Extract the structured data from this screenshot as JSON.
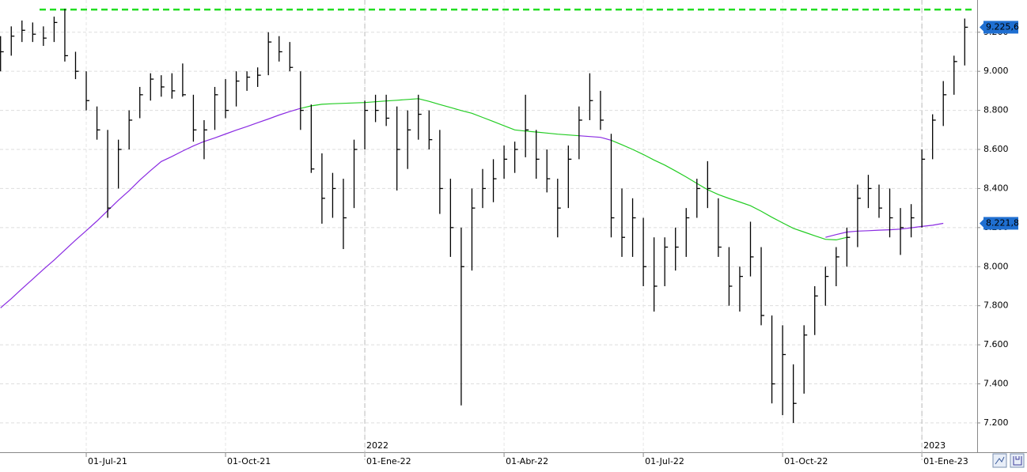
{
  "chart_data": {
    "type": "hlc",
    "categories": [
      null,
      null,
      null,
      null,
      null,
      null,
      null,
      null,
      "01-Jul-21",
      null,
      null,
      null,
      null,
      null,
      null,
      null,
      null,
      null,
      null,
      null,
      null,
      "01-Oct-21",
      null,
      null,
      null,
      null,
      null,
      null,
      null,
      null,
      null,
      null,
      null,
      null,
      "01-Ene-22",
      null,
      null,
      null,
      null,
      null,
      null,
      null,
      null,
      null,
      null,
      null,
      null,
      "01-Abr-22",
      null,
      null,
      null,
      null,
      null,
      null,
      null,
      null,
      null,
      null,
      null,
      null,
      "01-Jul-22",
      null,
      null,
      null,
      null,
      null,
      null,
      null,
      null,
      null,
      null,
      null,
      null,
      "01-Oct-22",
      null,
      null,
      null,
      null,
      null,
      null,
      null,
      null,
      null,
      null,
      null,
      null,
      "01-Ene-23",
      null,
      null,
      null,
      null
    ],
    "year_categories": [
      null,
      null,
      null,
      null,
      null,
      null,
      null,
      null,
      null,
      null,
      null,
      null,
      null,
      null,
      null,
      null,
      null,
      null,
      null,
      null,
      null,
      null,
      null,
      null,
      null,
      null,
      null,
      null,
      null,
      null,
      null,
      null,
      null,
      null,
      "2022",
      null,
      null,
      null,
      null,
      null,
      null,
      null,
      null,
      null,
      null,
      null,
      null,
      null,
      null,
      null,
      null,
      null,
      null,
      null,
      null,
      null,
      null,
      null,
      null,
      null,
      null,
      null,
      null,
      null,
      null,
      null,
      null,
      null,
      null,
      null,
      null,
      null,
      null,
      null,
      null,
      null,
      null,
      null,
      null,
      null,
      null,
      null,
      null,
      null,
      null,
      null,
      "2023",
      null,
      null,
      null,
      null
    ],
    "price": {
      "color": "#000000",
      "high": [
        9180,
        9230,
        9260,
        9250,
        9230,
        9280,
        9320,
        9100,
        9000,
        8820,
        8700,
        8650,
        8800,
        8920,
        8990,
        8980,
        8990,
        9040,
        8880,
        8750,
        8920,
        8960,
        9000,
        9000,
        9020,
        9200,
        9180,
        9150,
        9000,
        8830,
        8580,
        8480,
        8450,
        8650,
        8850,
        8880,
        8880,
        8820,
        8800,
        8880,
        8800,
        8700,
        8450,
        8200,
        8400,
        8500,
        8550,
        8620,
        8640,
        8880,
        8700,
        8600,
        8450,
        8620,
        8820,
        8990,
        8900,
        8680,
        8400,
        8350,
        8250,
        8150,
        8150,
        8200,
        8300,
        8450,
        8540,
        8350,
        8100,
        8000,
        8230,
        8100,
        7750,
        7700,
        7500,
        7700,
        7900,
        8000,
        8100,
        8200,
        8420,
        8470,
        8420,
        8400,
        8300,
        8320,
        8600,
        8780,
        8950,
        9080,
        9270
      ],
      "low": [
        9000,
        9080,
        9150,
        9150,
        9130,
        9150,
        9050,
        8960,
        8800,
        8650,
        8250,
        8400,
        8600,
        8760,
        8850,
        8870,
        8860,
        8870,
        8640,
        8550,
        8700,
        8760,
        8820,
        8900,
        8920,
        8980,
        9050,
        9000,
        8700,
        8480,
        8220,
        8250,
        8090,
        8300,
        8600,
        8740,
        8720,
        8390,
        8500,
        8650,
        8600,
        8270,
        8050,
        7290,
        7980,
        8300,
        8330,
        8450,
        8480,
        8560,
        8450,
        8380,
        8150,
        8300,
        8550,
        8750,
        8700,
        8150,
        8050,
        8050,
        7900,
        7770,
        7900,
        7980,
        8050,
        8250,
        8300,
        8050,
        7800,
        7770,
        7950,
        7700,
        7300,
        7240,
        7200,
        7350,
        7650,
        7800,
        7900,
        8000,
        8100,
        8300,
        8250,
        8150,
        8060,
        8150,
        8200,
        8550,
        8720,
        8880,
        9030
      ],
      "close": [
        9100,
        9180,
        9210,
        9190,
        9170,
        9250,
        9080,
        9000,
        8850,
        8700,
        8300,
        8600,
        8750,
        8880,
        8960,
        8920,
        8900,
        8880,
        8700,
        8700,
        8880,
        8800,
        8950,
        8970,
        8980,
        9150,
        9100,
        9020,
        8800,
        8500,
        8350,
        8400,
        8250,
        8600,
        8800,
        8800,
        8760,
        8600,
        8700,
        8780,
        8650,
        8400,
        8200,
        8000,
        8300,
        8400,
        8450,
        8550,
        8600,
        8700,
        8550,
        8450,
        8300,
        8550,
        8750,
        8850,
        8750,
        8250,
        8150,
        8250,
        8000,
        7900,
        8100,
        8100,
        8250,
        8400,
        8400,
        8100,
        7900,
        7950,
        8050,
        7750,
        7400,
        7550,
        7300,
        7650,
        7850,
        7950,
        8050,
        8150,
        8350,
        8400,
        8300,
        8250,
        8200,
        8250,
        8550,
        8750,
        8880,
        9050,
        9225.6
      ],
      "last_label": "9.225,6"
    },
    "ma": [
      {
        "color": "#8a2be2",
        "values": [
          7789,
          7836,
          7887,
          7936,
          7986,
          8034,
          8085,
          8136,
          8184,
          8234,
          8287,
          8340,
          8389,
          8443,
          8492,
          8538,
          8564,
          8592,
          8618,
          8641,
          8659,
          8679,
          8699,
          8717,
          8737,
          8756,
          8776,
          8794,
          8810,
          null,
          null,
          null,
          null,
          null,
          null,
          null,
          null,
          null,
          null,
          null,
          null,
          null,
          null,
          null,
          null,
          null,
          null,
          null,
          null,
          null,
          null,
          null,
          null,
          null,
          8670,
          8666,
          8662,
          8647,
          null,
          null,
          null,
          null,
          null,
          null,
          null,
          null,
          null,
          null,
          null,
          null,
          null,
          null,
          null,
          null,
          null,
          null,
          null,
          8150,
          8164,
          8177,
          8182,
          8184,
          8187,
          8189,
          8192,
          8199,
          8206,
          8212,
          8221.8
        ],
        "last_label": "8.221,8"
      },
      {
        "color": "#22cc22",
        "values": [
          null,
          null,
          null,
          null,
          null,
          null,
          null,
          null,
          null,
          null,
          null,
          null,
          null,
          null,
          null,
          null,
          null,
          null,
          null,
          null,
          null,
          null,
          null,
          null,
          null,
          null,
          null,
          null,
          8810,
          8823,
          8831,
          8834,
          8836,
          8838,
          8840,
          8844,
          8848,
          8852,
          8856,
          8860,
          8846,
          8830,
          8815,
          8799,
          8785,
          8764,
          8743,
          8721,
          8700,
          8694,
          8689,
          8684,
          8678,
          8674,
          8670,
          null,
          null,
          8647,
          8624,
          8600,
          8574,
          8546,
          8520,
          8490,
          8459,
          8426,
          8394,
          8369,
          8349,
          8331,
          8312,
          8284,
          8253,
          8224,
          8196,
          8177,
          8158,
          8140,
          8137,
          8150,
          null,
          null,
          null,
          null,
          null,
          null,
          null,
          null,
          null,
          null,
          null
        ]
      }
    ],
    "hline": {
      "value": 9316,
      "color": "#22dd22"
    },
    "ylim": [
      7050,
      9365
    ],
    "yticks": [
      {
        "value": 7200,
        "label": "7.200"
      },
      {
        "value": 7400,
        "label": "7.400"
      },
      {
        "value": 7600,
        "label": "7.600"
      },
      {
        "value": 7800,
        "label": "7.800"
      },
      {
        "value": 8000,
        "label": "8.000"
      },
      {
        "value": 8200,
        "label": "8.200"
      },
      {
        "value": 8400,
        "label": "8.400"
      },
      {
        "value": 8600,
        "label": "8.600"
      },
      {
        "value": 8800,
        "label": "8.800"
      },
      {
        "value": 9000,
        "label": "9.000"
      },
      {
        "value": 9200,
        "label": "9.200"
      }
    ],
    "grid": true
  }
}
